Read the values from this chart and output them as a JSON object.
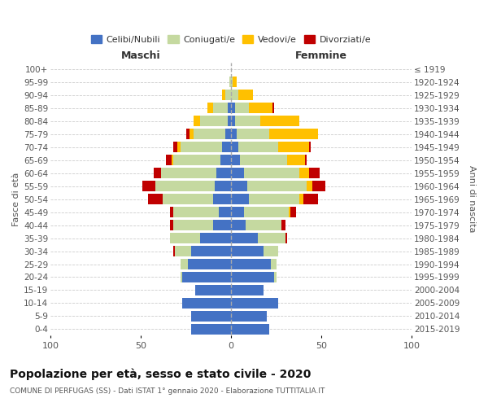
{
  "age_groups": [
    "0-4",
    "5-9",
    "10-14",
    "15-19",
    "20-24",
    "25-29",
    "30-34",
    "35-39",
    "40-44",
    "45-49",
    "50-54",
    "55-59",
    "60-64",
    "65-69",
    "70-74",
    "75-79",
    "80-84",
    "85-89",
    "90-94",
    "95-99",
    "100+"
  ],
  "birth_years": [
    "2015-2019",
    "2010-2014",
    "2005-2009",
    "2000-2004",
    "1995-1999",
    "1990-1994",
    "1985-1989",
    "1980-1984",
    "1975-1979",
    "1970-1974",
    "1965-1969",
    "1960-1964",
    "1955-1959",
    "1950-1954",
    "1945-1949",
    "1940-1944",
    "1935-1939",
    "1930-1934",
    "1925-1929",
    "1920-1924",
    "≤ 1919"
  ],
  "colors": {
    "celibi": "#4472C4",
    "coniugati": "#c5d9a0",
    "vedovi": "#ffc000",
    "divorziati": "#c00000"
  },
  "males_celibi": [
    22,
    22,
    27,
    20,
    27,
    24,
    22,
    17,
    10,
    7,
    10,
    9,
    8,
    6,
    5,
    3,
    2,
    2,
    0,
    0,
    0
  ],
  "males_coniugati": [
    0,
    0,
    0,
    0,
    1,
    4,
    9,
    17,
    22,
    25,
    28,
    33,
    31,
    26,
    23,
    18,
    15,
    8,
    3,
    1,
    0
  ],
  "males_vedovi": [
    0,
    0,
    0,
    0,
    0,
    0,
    0,
    0,
    0,
    0,
    0,
    0,
    0,
    1,
    2,
    2,
    4,
    3,
    2,
    0,
    0
  ],
  "males_divorziati": [
    0,
    0,
    0,
    0,
    0,
    0,
    1,
    0,
    2,
    2,
    8,
    7,
    4,
    3,
    2,
    2,
    0,
    0,
    0,
    0,
    0
  ],
  "females_nubili": [
    21,
    20,
    26,
    18,
    24,
    22,
    18,
    15,
    8,
    7,
    10,
    9,
    7,
    5,
    4,
    3,
    2,
    2,
    0,
    0,
    0
  ],
  "females_coniugate": [
    0,
    0,
    0,
    0,
    1,
    3,
    8,
    15,
    20,
    25,
    28,
    33,
    31,
    26,
    22,
    18,
    14,
    8,
    4,
    1,
    0
  ],
  "females_vedove": [
    0,
    0,
    0,
    0,
    0,
    0,
    0,
    0,
    0,
    1,
    2,
    3,
    5,
    10,
    17,
    27,
    22,
    13,
    8,
    2,
    0
  ],
  "females_divorziate": [
    0,
    0,
    0,
    0,
    0,
    0,
    0,
    1,
    2,
    3,
    8,
    7,
    6,
    1,
    1,
    0,
    0,
    1,
    0,
    0,
    0
  ],
  "xlim": 100,
  "title": "Popolazione per età, sesso e stato civile - 2020",
  "subtitle": "COMUNE DI PERFUGAS (SS) - Dati ISTAT 1° gennaio 2020 - Elaborazione TUTTITALIA.IT",
  "ylabel_left": "Fasce di età",
  "ylabel_right": "Anni di nascita",
  "xlabel_left": "Maschi",
  "xlabel_right": "Femmine",
  "bg_color": "#ffffff",
  "grid_color": "#cccccc",
  "legend_labels": [
    "Celibi/Nubili",
    "Coniugati/e",
    "Vedovi/e",
    "Divorziati/e"
  ]
}
